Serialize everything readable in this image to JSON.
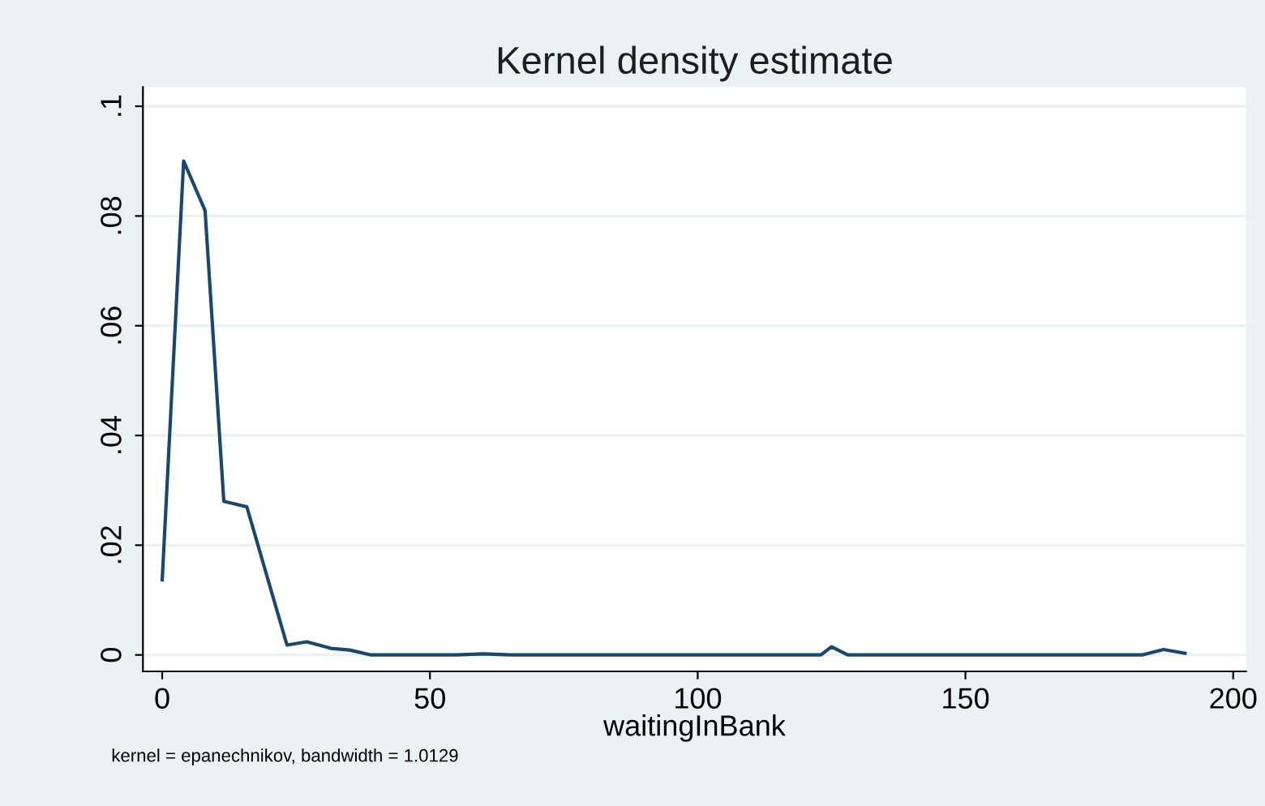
{
  "chart_data": {
    "type": "line",
    "title": "Kernel density estimate",
    "xlabel": "waitingInBank",
    "annotations": [
      "kernel = epanechnikov, bandwidth = 1.0129"
    ],
    "x": [
      0,
      4,
      8,
      11.5,
      15.8,
      23.3,
      27,
      31.5,
      35,
      39,
      55,
      60,
      65,
      123,
      125,
      128,
      183,
      187,
      191
    ],
    "series": [
      {
        "color": "#1a476f",
        "values": [
          0.0137,
          0.09,
          0.081,
          0.028,
          0.027,
          0.0018,
          0.0024,
          0.0012,
          0.0009,
          0,
          0,
          0.0002,
          0,
          0,
          0.0015,
          0,
          0,
          0.001,
          0.0003
        ]
      }
    ],
    "xlim": [
      -3.6,
      202.4
    ],
    "ylim": [
      -0.003,
      0.1035
    ],
    "xticks": [
      0,
      50,
      100,
      150,
      200
    ],
    "yticks": [
      0,
      {
        "value": 0.02,
        "label": ".02"
      },
      {
        "value": 0.04,
        "label": ".04"
      },
      {
        "value": 0.06,
        "label": ".06"
      },
      {
        "value": 0.08,
        "label": ".08"
      },
      {
        "value": 0.1,
        "label": ".1"
      }
    ],
    "grid": "y",
    "legend": false
  }
}
